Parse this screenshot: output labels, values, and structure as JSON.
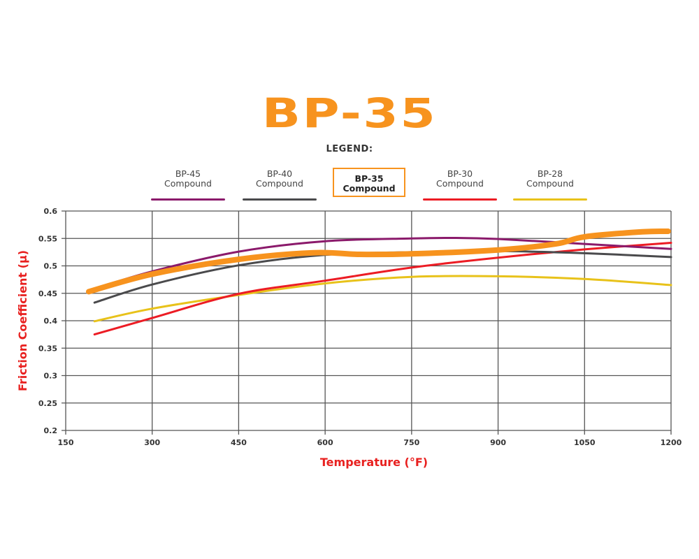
{
  "chart_data": {
    "type": "line",
    "title": "BP-35",
    "legend_title": "LEGEND:",
    "legend_position": "top",
    "xlabel": "Temperature (°F)",
    "ylabel": "Friction Coefficient (μ)",
    "xlim": [
      150,
      1200
    ],
    "ylim": [
      0.2,
      0.6
    ],
    "xticks": [
      "150",
      "300",
      "450",
      "600",
      "750",
      "900",
      "1050",
      "1200"
    ],
    "yticks": [
      "0.2",
      "0.25",
      "0.3",
      "0.35",
      "0.4",
      "0.45",
      "0.5",
      "0.55",
      "0.6"
    ],
    "grid": true,
    "series": [
      {
        "name_line1": "BP-45",
        "name_line2": "Compound",
        "color": "#8b1a6b",
        "highlight": false,
        "x": [
          190,
          300,
          450,
          600,
          750,
          825,
          900,
          1050,
          1200
        ],
        "y": [
          0.455,
          0.49,
          0.526,
          0.545,
          0.55,
          0.551,
          0.549,
          0.54,
          0.531
        ]
      },
      {
        "name_line1": "BP-40",
        "name_line2": "Compound",
        "color": "#4a4a4c",
        "highlight": false,
        "x": [
          200,
          300,
          450,
          600,
          750,
          900,
          1050,
          1200
        ],
        "y": [
          0.433,
          0.466,
          0.501,
          0.52,
          0.525,
          0.527,
          0.523,
          0.516
        ]
      },
      {
        "name_line1": "BP-35",
        "name_line2": "Compound",
        "color": "#f7931e",
        "highlight": true,
        "x": [
          190,
          300,
          450,
          580,
          660,
          750,
          900,
          1000,
          1050,
          1150,
          1195
        ],
        "y": [
          0.453,
          0.485,
          0.512,
          0.524,
          0.521,
          0.522,
          0.529,
          0.54,
          0.553,
          0.562,
          0.563
        ]
      },
      {
        "name_line1": "BP-30",
        "name_line2": "Compound",
        "color": "#ec1c24",
        "highlight": false,
        "x": [
          200,
          300,
          450,
          600,
          750,
          900,
          1050,
          1200
        ],
        "y": [
          0.375,
          0.405,
          0.449,
          0.473,
          0.497,
          0.515,
          0.53,
          0.542
        ]
      },
      {
        "name_line1": "BP-28",
        "name_line2": "Compound",
        "color": "#e8c21a",
        "highlight": false,
        "x": [
          200,
          300,
          450,
          600,
          750,
          900,
          1050,
          1200
        ],
        "y": [
          0.399,
          0.422,
          0.447,
          0.468,
          0.48,
          0.481,
          0.476,
          0.465
        ]
      }
    ]
  }
}
